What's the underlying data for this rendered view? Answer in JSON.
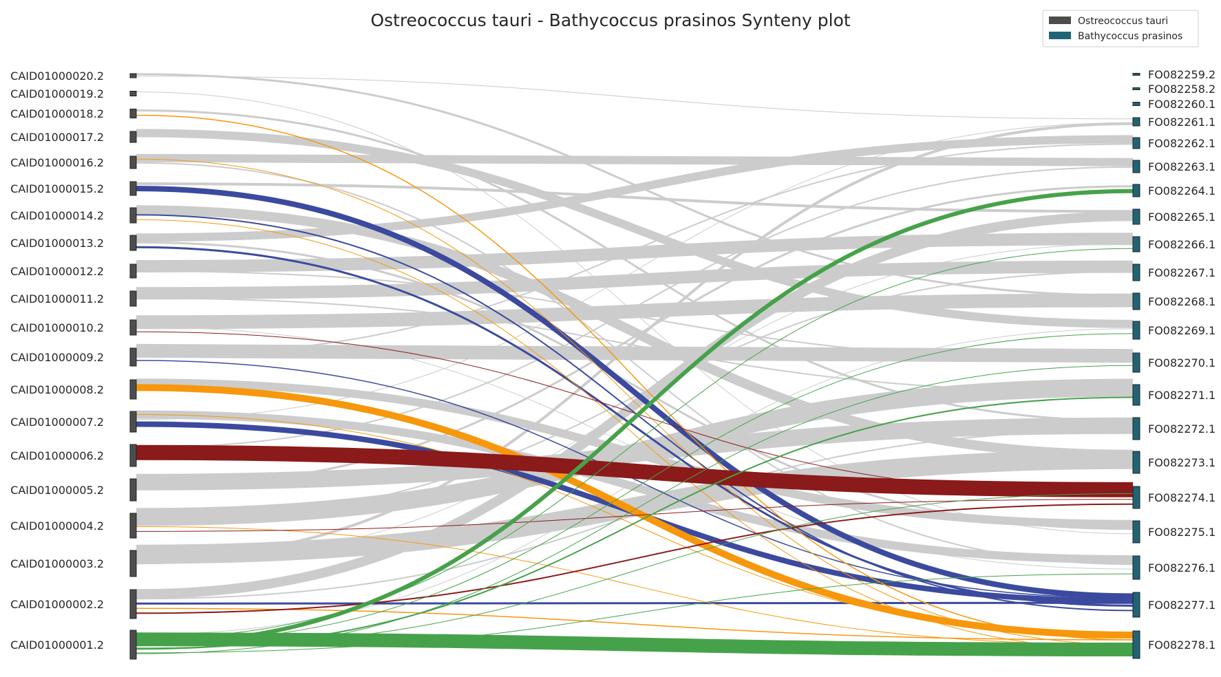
{
  "chart_data": {
    "type": "synteny",
    "title": "Ostreococcus tauri - Bathycoccus prasinos Synteny plot",
    "legend": {
      "placement": "top-right",
      "entries": [
        {
          "label": "Ostreococcus tauri",
          "color": "#4d4d4d"
        },
        {
          "label": "Bathycoccus prasinos",
          "color": "#1f6475"
        }
      ]
    },
    "colors": {
      "default_link": "#cccccc",
      "highlights": [
        "#3b4a9e",
        "#f7970b",
        "#8b1a1a",
        "#46a24a"
      ]
    },
    "left_genome": {
      "name": "Ostreococcus tauri",
      "chromosomes": [
        "CAID01000020.2",
        "CAID01000019.2",
        "CAID01000018.2",
        "CAID01000017.2",
        "CAID01000016.2",
        "CAID01000015.2",
        "CAID01000014.2",
        "CAID01000013.2",
        "CAID01000012.2",
        "CAID01000011.2",
        "CAID01000010.2",
        "CAID01000009.2",
        "CAID01000008.2",
        "CAID01000007.2",
        "CAID01000006.2",
        "CAID01000005.2",
        "CAID01000004.2",
        "CAID01000003.2",
        "CAID01000002.2",
        "CAID01000001.2"
      ]
    },
    "right_genome": {
      "name": "Bathycoccus prasinos",
      "chromosomes": [
        "FO082259.2",
        "FO082258.2",
        "FO082260.1",
        "FO082261.1",
        "FO082262.1",
        "FO082263.1",
        "FO082264.1",
        "FO082265.1",
        "FO082266.1",
        "FO082267.1",
        "FO082268.1",
        "FO082269.1",
        "FO082270.1",
        "FO082271.1",
        "FO082272.1",
        "FO082273.1",
        "FO082274.1",
        "FO082275.1",
        "FO082276.1",
        "FO082277.1",
        "FO082278.1"
      ]
    },
    "links": [
      {
        "from": "CAID01000015.2",
        "to": "FO082277.1",
        "color": "#3b4a9e",
        "weight": 8
      },
      {
        "from": "CAID01000007.2",
        "to": "FO082277.1",
        "color": "#3b4a9e",
        "weight": 8
      },
      {
        "from": "CAID01000013.2",
        "to": "FO082277.1",
        "color": "#3b4a9e",
        "weight": 3
      },
      {
        "from": "CAID01000014.2",
        "to": "FO082277.1",
        "color": "#3b4a9e",
        "weight": 2
      },
      {
        "from": "CAID01000009.2",
        "to": "FO082277.1",
        "color": "#3b4a9e",
        "weight": 1.5
      },
      {
        "from": "CAID01000002.2",
        "to": "FO082277.1",
        "color": "#3b4a9e",
        "weight": 3
      },
      {
        "from": "CAID01000008.2",
        "to": "FO082278.1",
        "color": "#f7970b",
        "weight": 10
      },
      {
        "from": "CAID01000018.2",
        "to": "FO082278.1",
        "color": "#f7970b",
        "weight": 1.5
      },
      {
        "from": "CAID01000016.2",
        "to": "FO082278.1",
        "color": "#f7970b",
        "weight": 1
      },
      {
        "from": "CAID01000014.2",
        "to": "FO082278.1",
        "color": "#f7970b",
        "weight": 1
      },
      {
        "from": "CAID01000007.2",
        "to": "FO082278.1",
        "color": "#f7970b",
        "weight": 1
      },
      {
        "from": "CAID01000002.2",
        "to": "FO082278.1",
        "color": "#f7970b",
        "weight": 1.5
      },
      {
        "from": "CAID01000004.2",
        "to": "FO082278.1",
        "color": "#f7970b",
        "weight": 1
      },
      {
        "from": "CAID01000006.2",
        "to": "FO082274.1",
        "color": "#8b1a1a",
        "weight": 22
      },
      {
        "from": "CAID01000010.2",
        "to": "FO082274.1",
        "color": "#8b1a1a",
        "weight": 1
      },
      {
        "from": "CAID01000004.2",
        "to": "FO082274.1",
        "color": "#8b1a1a",
        "weight": 1
      },
      {
        "from": "CAID01000002.2",
        "to": "FO082274.1",
        "color": "#8b1a1a",
        "weight": 2
      },
      {
        "from": "CAID01000001.2",
        "to": "FO082278.1",
        "color": "#46a24a",
        "weight": 20
      },
      {
        "from": "CAID01000001.2",
        "to": "FO082264.1",
        "color": "#46a24a",
        "weight": 6
      },
      {
        "from": "CAID01000001.2",
        "to": "FO082271.1",
        "color": "#46a24a",
        "weight": 2
      },
      {
        "from": "CAID01000001.2",
        "to": "FO082270.1",
        "color": "#46a24a",
        "weight": 1
      },
      {
        "from": "CAID01000001.2",
        "to": "FO082266.1",
        "color": "#46a24a",
        "weight": 1
      },
      {
        "from": "CAID01000001.2",
        "to": "FO082269.1",
        "color": "#46a24a",
        "weight": 1
      },
      {
        "from": "CAID01000001.2",
        "to": "FO082274.1",
        "color": "#46a24a",
        "weight": 1
      },
      {
        "from": "CAID01000001.2",
        "to": "FO082276.1",
        "color": "#46a24a",
        "weight": 1
      },
      {
        "from": "CAID01000020.2",
        "to": "FO082268.1",
        "color": "#cccccc",
        "weight": 3
      },
      {
        "from": "CAID01000020.2",
        "to": "FO082261.1",
        "color": "#cccccc",
        "weight": 1
      },
      {
        "from": "CAID01000018.2",
        "to": "FO082272.1",
        "color": "#cccccc",
        "weight": 3
      },
      {
        "from": "CAID01000017.2",
        "to": "FO082269.1",
        "color": "#cccccc",
        "weight": 12
      },
      {
        "from": "CAID01000016.2",
        "to": "FO082263.1",
        "color": "#cccccc",
        "weight": 12
      },
      {
        "from": "CAID01000015.2",
        "to": "FO082265.1",
        "color": "#cccccc",
        "weight": 4
      },
      {
        "from": "CAID01000014.2",
        "to": "FO082273.1",
        "color": "#cccccc",
        "weight": 14
      },
      {
        "from": "CAID01000013.2",
        "to": "FO082262.1",
        "color": "#cccccc",
        "weight": 12
      },
      {
        "from": "CAID01000012.2",
        "to": "FO082266.1",
        "color": "#cccccc",
        "weight": 18
      },
      {
        "from": "CAID01000011.2",
        "to": "FO082267.1",
        "color": "#cccccc",
        "weight": 18
      },
      {
        "from": "CAID01000010.2",
        "to": "FO082268.1",
        "color": "#cccccc",
        "weight": 20
      },
      {
        "from": "CAID01000009.2",
        "to": "FO082270.1",
        "color": "#cccccc",
        "weight": 20
      },
      {
        "from": "CAID01000008.2",
        "to": "FO082275.1",
        "color": "#cccccc",
        "weight": 12
      },
      {
        "from": "CAID01000007.2",
        "to": "FO082276.1",
        "color": "#cccccc",
        "weight": 12
      },
      {
        "from": "CAID01000005.2",
        "to": "FO082272.1",
        "color": "#cccccc",
        "weight": 24
      },
      {
        "from": "CAID01000004.2",
        "to": "FO082271.1",
        "color": "#cccccc",
        "weight": 26
      },
      {
        "from": "CAID01000003.2",
        "to": "FO082273.1",
        "color": "#cccccc",
        "weight": 28
      },
      {
        "from": "CAID01000003.2",
        "to": "FO082261.1",
        "color": "#cccccc",
        "weight": 4
      },
      {
        "from": "CAID01000002.2",
        "to": "FO082265.1",
        "color": "#cccccc",
        "weight": 14
      },
      {
        "from": "CAID01000005.2",
        "to": "FO082264.1",
        "color": "#cccccc",
        "weight": 3
      },
      {
        "from": "CAID01000013.2",
        "to": "FO082275.1",
        "color": "#cccccc",
        "weight": 3
      },
      {
        "from": "CAID01000016.2",
        "to": "FO082276.1",
        "color": "#cccccc",
        "weight": 2
      },
      {
        "from": "CAID01000011.2",
        "to": "FO082271.1",
        "color": "#cccccc",
        "weight": 2
      },
      {
        "from": "CAID01000012.2",
        "to": "FO082270.1",
        "color": "#cccccc",
        "weight": 2
      },
      {
        "from": "CAID01000009.2",
        "to": "FO082262.1",
        "color": "#cccccc",
        "weight": 2
      },
      {
        "from": "CAID01000006.2",
        "to": "FO082263.1",
        "color": "#cccccc",
        "weight": 2
      },
      {
        "from": "CAID01000004.2",
        "to": "FO082267.1",
        "color": "#cccccc",
        "weight": 2
      },
      {
        "from": "CAID01000001.2",
        "to": "FO082269.1",
        "color": "#cccccc",
        "weight": 1
      },
      {
        "from": "CAID01000019.2",
        "to": "FO082275.1",
        "color": "#cccccc",
        "weight": 1
      },
      {
        "from": "CAID01000010.2",
        "to": "FO082276.1",
        "color": "#cccccc",
        "weight": 1
      },
      {
        "from": "CAID01000002.2",
        "to": "FO082272.1",
        "color": "#cccccc",
        "weight": 2
      },
      {
        "from": "CAID01000003.2",
        "to": "FO082266.1",
        "color": "#cccccc",
        "weight": 1
      },
      {
        "from": "CAID01000007.2",
        "to": "FO082261.1",
        "color": "#cccccc",
        "weight": 1
      }
    ]
  }
}
